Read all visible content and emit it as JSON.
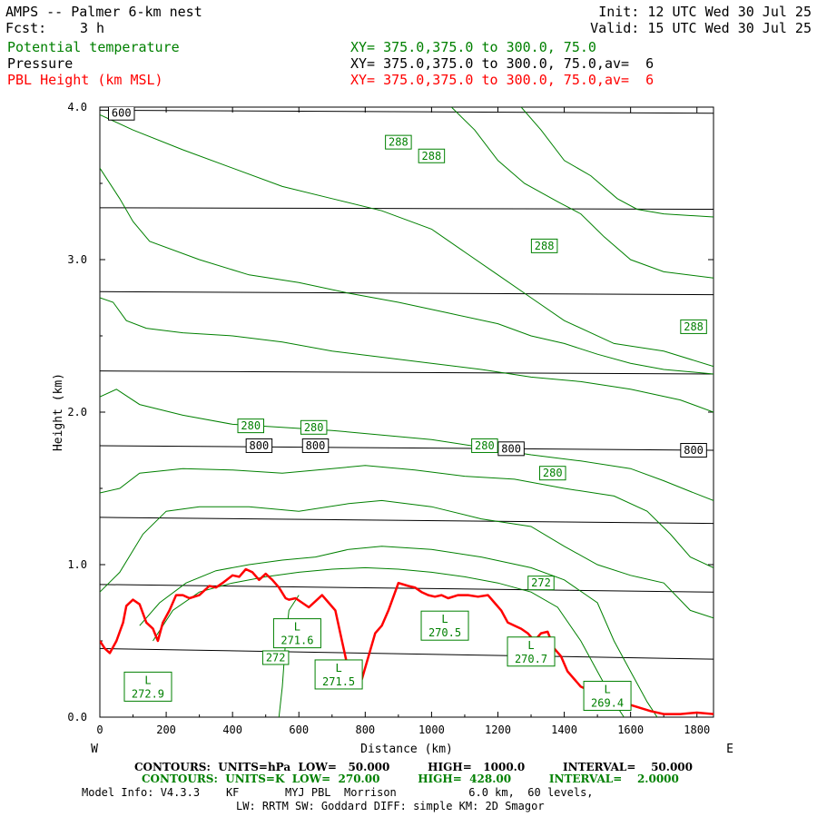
{
  "header": {
    "title": "AMPS -- Palmer 6-km nest",
    "fcst_label": "Fcst:",
    "fcst_value": "3 h",
    "init": "Init: 12 UTC Wed 30 Jul 25",
    "valid": "Valid: 15 UTC Wed 30 Jul 25",
    "fields": [
      {
        "name": "Potential temperature",
        "xy": "XY= 375.0,375.0 to 300.0, 75.0",
        "color": "#008000"
      },
      {
        "name": "Pressure",
        "xy": "XY= 375.0,375.0 to 300.0, 75.0,av=  6",
        "color": "#000000"
      },
      {
        "name": "PBL Height (km MSL)",
        "xy": "XY= 375.0,375.0 to 300.0, 75.0,av=  6",
        "color": "#ff0000"
      }
    ]
  },
  "footer": {
    "pressure_contours": "CONTOURS:  UNITS=hPa  LOW=   50.000          HIGH=   1000.0          INTERVAL=    50.000",
    "theta_contours": "CONTOURS:  UNITS=K  LOW=  270.00          HIGH=  428.00          INTERVAL=    2.0000",
    "model_info": "Model Info: V4.3.3    KF       MYJ PBL  Morrison           6.0 km,  60 levels,",
    "model_info2": "LW: RRTM SW: Goddard DIFF: simple KM: 2D Smagor"
  },
  "chart_data": {
    "type": "line",
    "xlabel": "Distance (km)",
    "ylabel": "Height (km)",
    "xlim": [
      0,
      1850
    ],
    "ylim": [
      0,
      4.0
    ],
    "x_ticks": [
      "0",
      "200",
      "400",
      "600",
      "800",
      "1000",
      "1200",
      "1400",
      "1600",
      "1800"
    ],
    "y_ticks": [
      "0.0",
      "1.0",
      "2.0",
      "3.0",
      "4.0"
    ],
    "left_end_label": "W",
    "right_end_label": "E",
    "colors": {
      "pressure": "#000000",
      "theta": "#008000",
      "pbl": "#ff0000"
    },
    "pressure_isobars": [
      {
        "label": "600",
        "heights": [
          3.98,
          3.96
        ]
      },
      {
        "label": "",
        "heights": [
          3.34,
          3.33
        ]
      },
      {
        "label": "",
        "heights": [
          2.79,
          2.77
        ]
      },
      {
        "label": "",
        "heights": [
          2.27,
          2.25
        ]
      },
      {
        "label": "800",
        "heights": [
          1.78,
          1.75
        ]
      },
      {
        "label": "",
        "heights": [
          1.31,
          1.27
        ]
      },
      {
        "label": "",
        "heights": [
          0.87,
          0.82
        ]
      },
      {
        "label": "",
        "heights": [
          0.45,
          0.38
        ]
      }
    ],
    "pressure_labels": [
      {
        "text": "600",
        "x": 65,
        "y": 3.96
      },
      {
        "text": "800",
        "x": 480,
        "y": 1.78
      },
      {
        "text": "800",
        "x": 650,
        "y": 1.78
      },
      {
        "text": "800",
        "x": 1240,
        "y": 1.76
      },
      {
        "text": "800",
        "x": 1790,
        "y": 1.75
      }
    ],
    "theta_contours": [
      {
        "points": [
          [
            1270,
            4.0
          ],
          [
            1330,
            3.85
          ],
          [
            1400,
            3.65
          ],
          [
            1480,
            3.55
          ],
          [
            1560,
            3.4
          ],
          [
            1620,
            3.33
          ],
          [
            1700,
            3.3
          ],
          [
            1850,
            3.28
          ]
        ]
      },
      {
        "points": [
          [
            1060,
            4.0
          ],
          [
            1130,
            3.85
          ],
          [
            1200,
            3.65
          ],
          [
            1280,
            3.5
          ],
          [
            1380,
            3.38
          ],
          [
            1450,
            3.3
          ],
          [
            1520,
            3.15
          ],
          [
            1600,
            3.0
          ],
          [
            1700,
            2.92
          ],
          [
            1850,
            2.88
          ]
        ]
      },
      {
        "points": [
          [
            0,
            3.95
          ],
          [
            100,
            3.85
          ],
          [
            250,
            3.72
          ],
          [
            400,
            3.6
          ],
          [
            550,
            3.48
          ],
          [
            700,
            3.4
          ],
          [
            850,
            3.32
          ],
          [
            1000,
            3.2
          ],
          [
            1100,
            3.05
          ],
          [
            1200,
            2.9
          ],
          [
            1300,
            2.75
          ],
          [
            1400,
            2.6
          ],
          [
            1550,
            2.45
          ],
          [
            1700,
            2.4
          ],
          [
            1850,
            2.3
          ]
        ]
      },
      {
        "points": [
          [
            0,
            3.6
          ],
          [
            60,
            3.4
          ],
          [
            100,
            3.25
          ],
          [
            150,
            3.12
          ],
          [
            300,
            3.0
          ],
          [
            450,
            2.9
          ],
          [
            600,
            2.85
          ],
          [
            750,
            2.78
          ],
          [
            900,
            2.72
          ],
          [
            1050,
            2.65
          ],
          [
            1200,
            2.58
          ],
          [
            1300,
            2.5
          ],
          [
            1400,
            2.45
          ],
          [
            1500,
            2.38
          ],
          [
            1600,
            2.32
          ],
          [
            1700,
            2.28
          ],
          [
            1850,
            2.25
          ]
        ]
      },
      {
        "points": [
          [
            0,
            2.75
          ],
          [
            40,
            2.72
          ],
          [
            80,
            2.6
          ],
          [
            140,
            2.55
          ],
          [
            250,
            2.52
          ],
          [
            400,
            2.5
          ],
          [
            550,
            2.46
          ],
          [
            700,
            2.4
          ],
          [
            850,
            2.36
          ],
          [
            1000,
            2.32
          ],
          [
            1150,
            2.28
          ],
          [
            1300,
            2.23
          ],
          [
            1450,
            2.2
          ],
          [
            1600,
            2.15
          ],
          [
            1750,
            2.08
          ],
          [
            1850,
            2.0
          ]
        ]
      },
      {
        "points": [
          [
            0,
            2.1
          ],
          [
            50,
            2.15
          ],
          [
            120,
            2.05
          ],
          [
            250,
            1.98
          ],
          [
            400,
            1.92
          ],
          [
            550,
            1.9
          ],
          [
            700,
            1.88
          ],
          [
            850,
            1.85
          ],
          [
            1000,
            1.82
          ],
          [
            1150,
            1.77
          ],
          [
            1300,
            1.72
          ],
          [
            1450,
            1.68
          ],
          [
            1600,
            1.63
          ],
          [
            1700,
            1.55
          ],
          [
            1780,
            1.48
          ],
          [
            1850,
            1.42
          ]
        ]
      },
      {
        "points": [
          [
            0,
            1.47
          ],
          [
            60,
            1.5
          ],
          [
            120,
            1.6
          ],
          [
            250,
            1.63
          ],
          [
            400,
            1.62
          ],
          [
            550,
            1.6
          ],
          [
            700,
            1.63
          ],
          [
            800,
            1.65
          ],
          [
            950,
            1.62
          ],
          [
            1100,
            1.58
          ],
          [
            1250,
            1.56
          ],
          [
            1400,
            1.5
          ],
          [
            1550,
            1.45
          ],
          [
            1650,
            1.35
          ],
          [
            1720,
            1.2
          ],
          [
            1780,
            1.05
          ],
          [
            1850,
            0.98
          ]
        ]
      },
      {
        "points": [
          [
            0,
            0.82
          ],
          [
            60,
            0.95
          ],
          [
            130,
            1.2
          ],
          [
            200,
            1.35
          ],
          [
            300,
            1.38
          ],
          [
            450,
            1.38
          ],
          [
            600,
            1.35
          ],
          [
            750,
            1.4
          ],
          [
            850,
            1.42
          ],
          [
            1000,
            1.38
          ],
          [
            1150,
            1.3
          ],
          [
            1300,
            1.25
          ],
          [
            1400,
            1.12
          ],
          [
            1500,
            1.0
          ],
          [
            1600,
            0.93
          ],
          [
            1700,
            0.88
          ],
          [
            1780,
            0.7
          ],
          [
            1850,
            0.65
          ]
        ]
      },
      {
        "points": [
          [
            120,
            0.6
          ],
          [
            180,
            0.75
          ],
          [
            260,
            0.88
          ],
          [
            350,
            0.96
          ],
          [
            450,
            1.0
          ],
          [
            550,
            1.03
          ],
          [
            650,
            1.05
          ],
          [
            750,
            1.1
          ],
          [
            850,
            1.12
          ],
          [
            1000,
            1.1
          ],
          [
            1150,
            1.05
          ],
          [
            1300,
            0.98
          ],
          [
            1400,
            0.9
          ],
          [
            1500,
            0.75
          ],
          [
            1550,
            0.5
          ],
          [
            1600,
            0.3
          ],
          [
            1650,
            0.1
          ],
          [
            1680,
            0.0
          ]
        ]
      },
      {
        "points": [
          [
            160,
            0.5
          ],
          [
            220,
            0.7
          ],
          [
            300,
            0.82
          ],
          [
            400,
            0.88
          ],
          [
            500,
            0.92
          ],
          [
            600,
            0.95
          ],
          [
            700,
            0.97
          ],
          [
            800,
            0.98
          ],
          [
            900,
            0.97
          ],
          [
            1000,
            0.95
          ],
          [
            1100,
            0.92
          ],
          [
            1200,
            0.88
          ],
          [
            1300,
            0.82
          ],
          [
            1380,
            0.72
          ],
          [
            1450,
            0.5
          ],
          [
            1500,
            0.3
          ],
          [
            1550,
            0.1
          ],
          [
            1580,
            0.0
          ]
        ]
      },
      {
        "points": [
          [
            540,
            0.0
          ],
          [
            550,
            0.2
          ],
          [
            560,
            0.5
          ],
          [
            570,
            0.7
          ],
          [
            600,
            0.8
          ]
        ]
      }
    ],
    "theta_labels": [
      {
        "text": "288",
        "x": 900,
        "y": 3.77
      },
      {
        "text": "288",
        "x": 1000,
        "y": 3.68
      },
      {
        "text": "288",
        "x": 1340,
        "y": 3.09
      },
      {
        "text": "288",
        "x": 1790,
        "y": 2.56
      },
      {
        "text": "280",
        "x": 455,
        "y": 1.91
      },
      {
        "text": "280",
        "x": 645,
        "y": 1.9
      },
      {
        "text": "280",
        "x": 1160,
        "y": 1.78
      },
      {
        "text": "280",
        "x": 1365,
        "y": 1.6
      },
      {
        "text": "272",
        "x": 1330,
        "y": 0.88
      },
      {
        "text": "272",
        "x": 530,
        "y": 0.39
      }
    ],
    "theta_lows": [
      {
        "letter": "L",
        "value": "272.9",
        "x": 145,
        "y": 0.2
      },
      {
        "letter": "L",
        "value": "271.6",
        "x": 595,
        "y": 0.55
      },
      {
        "letter": "L",
        "value": "271.5",
        "x": 720,
        "y": 0.28
      },
      {
        "letter": "L",
        "value": "270.5",
        "x": 1040,
        "y": 0.6
      },
      {
        "letter": "L",
        "value": "270.7",
        "x": 1300,
        "y": 0.43
      },
      {
        "letter": "L",
        "value": "269.4",
        "x": 1530,
        "y": 0.14
      }
    ],
    "series": [
      {
        "name": "PBL Height (km MSL)",
        "x": [
          0,
          15,
          30,
          50,
          70,
          80,
          100,
          120,
          140,
          160,
          175,
          190,
          210,
          230,
          250,
          270,
          300,
          330,
          350,
          370,
          400,
          420,
          440,
          460,
          480,
          500,
          520,
          540,
          560,
          570,
          590,
          610,
          630,
          650,
          670,
          690,
          710,
          730,
          750,
          770,
          790,
          810,
          830,
          850,
          870,
          900,
          930,
          950,
          970,
          990,
          1010,
          1030,
          1050,
          1080,
          1110,
          1140,
          1170,
          1190,
          1210,
          1230,
          1250,
          1270,
          1290,
          1310,
          1330,
          1350,
          1370,
          1390,
          1410,
          1430,
          1450,
          1470,
          1490,
          1510,
          1530,
          1550,
          1570,
          1600,
          1630,
          1660,
          1700,
          1750,
          1800,
          1850
        ],
        "y": [
          0.5,
          0.45,
          0.42,
          0.5,
          0.62,
          0.73,
          0.77,
          0.74,
          0.62,
          0.58,
          0.5,
          0.62,
          0.7,
          0.8,
          0.8,
          0.78,
          0.8,
          0.86,
          0.85,
          0.88,
          0.93,
          0.92,
          0.97,
          0.95,
          0.9,
          0.94,
          0.9,
          0.85,
          0.78,
          0.77,
          0.78,
          0.75,
          0.72,
          0.76,
          0.8,
          0.75,
          0.7,
          0.5,
          0.3,
          0.22,
          0.25,
          0.4,
          0.55,
          0.6,
          0.7,
          0.88,
          0.86,
          0.85,
          0.82,
          0.8,
          0.79,
          0.8,
          0.78,
          0.8,
          0.8,
          0.79,
          0.8,
          0.75,
          0.7,
          0.62,
          0.6,
          0.58,
          0.55,
          0.5,
          0.55,
          0.56,
          0.45,
          0.4,
          0.3,
          0.25,
          0.2,
          0.18,
          0.16,
          0.15,
          0.14,
          0.13,
          0.11,
          0.08,
          0.06,
          0.04,
          0.02,
          0.02,
          0.03,
          0.02
        ]
      }
    ]
  }
}
